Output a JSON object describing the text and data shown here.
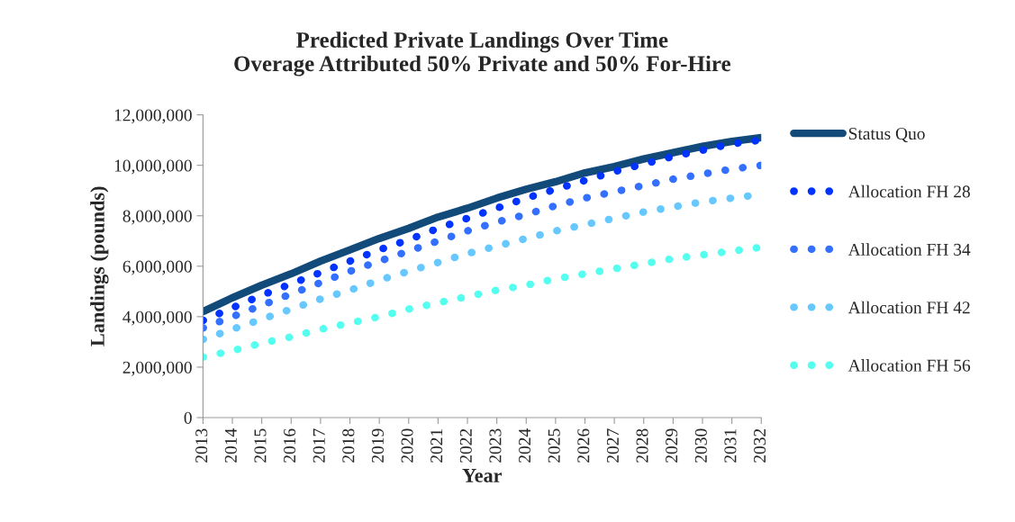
{
  "chart_data": {
    "type": "line",
    "title": "Predicted Private Landings Over Time\nOverage Attributed 50% Private and 50% For-Hire",
    "xlabel": "Year",
    "ylabel": "Landings (pounds)",
    "categories": [
      "2013",
      "2014",
      "2015",
      "2016",
      "2017",
      "2018",
      "2019",
      "2020",
      "2021",
      "2022",
      "2023",
      "2024",
      "2025",
      "2026",
      "2027",
      "2028",
      "2029",
      "2030",
      "2031",
      "2032"
    ],
    "ylim": [
      0,
      12000000
    ],
    "yticks": [
      {
        "value": 0,
        "label": "0"
      },
      {
        "value": 2000000,
        "label": "2,000,000"
      },
      {
        "value": 4000000,
        "label": "4,000,000"
      },
      {
        "value": 6000000,
        "label": "6,000,000"
      },
      {
        "value": 8000000,
        "label": "8,000,000"
      },
      {
        "value": 10000000,
        "label": "10,000,000"
      },
      {
        "value": 12000000,
        "label": "12,000,000"
      }
    ],
    "grid": false,
    "legend": "right",
    "marker": "none",
    "series": [
      {
        "name": "Status Quo",
        "color": "#124a7a",
        "line_style": "solid",
        "values": [
          4200000,
          4750000,
          5250000,
          5700000,
          6200000,
          6650000,
          7100000,
          7500000,
          7950000,
          8300000,
          8700000,
          9050000,
          9350000,
          9700000,
          9950000,
          10250000,
          10500000,
          10750000,
          10950000,
          11100000
        ]
      },
      {
        "name": "Allocation FH 28",
        "color": "#0033ff",
        "line_style": "dotted",
        "values": [
          3850000,
          4350000,
          4850000,
          5300000,
          5750000,
          6200000,
          6650000,
          7050000,
          7500000,
          7900000,
          8300000,
          8700000,
          9050000,
          9400000,
          9750000,
          10050000,
          10350000,
          10600000,
          10850000,
          11000000
        ]
      },
      {
        "name": "Allocation FH 34",
        "color": "#3370ff",
        "line_style": "dotted",
        "values": [
          3550000,
          4000000,
          4450000,
          4900000,
          5350000,
          5800000,
          6200000,
          6600000,
          7000000,
          7400000,
          7750000,
          8050000,
          8400000,
          8700000,
          8950000,
          9200000,
          9450000,
          9650000,
          9850000,
          10000000
        ]
      },
      {
        "name": "Allocation FH 42",
        "color": "#66c8ff",
        "line_style": "dotted",
        "values": [
          3100000,
          3500000,
          3900000,
          4300000,
          4700000,
          5050000,
          5450000,
          5800000,
          6150000,
          6500000,
          6800000,
          7100000,
          7400000,
          7650000,
          7900000,
          8150000,
          8350000,
          8550000,
          8700000,
          8850000
        ]
      },
      {
        "name": "Allocation FH 56",
        "color": "#55fff0",
        "line_style": "dotted",
        "values": [
          2400000,
          2650000,
          2950000,
          3200000,
          3500000,
          3750000,
          4000000,
          4300000,
          4550000,
          4800000,
          5050000,
          5250000,
          5500000,
          5700000,
          5900000,
          6100000,
          6300000,
          6450000,
          6600000,
          6750000
        ]
      }
    ]
  }
}
